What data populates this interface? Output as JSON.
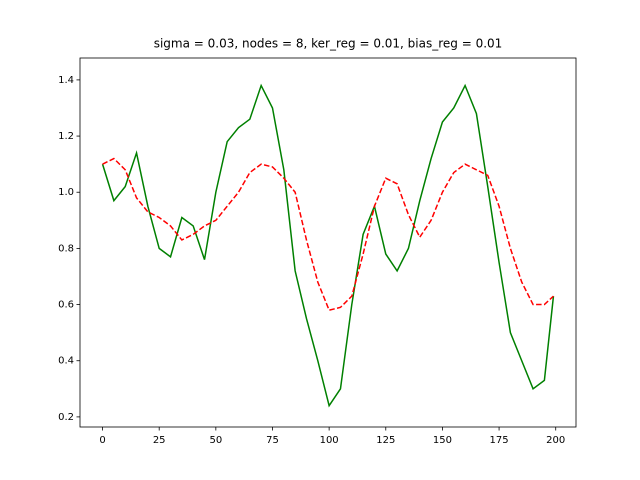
{
  "chart_data": {
    "type": "line",
    "title": "sigma = 0.03, nodes = 8, ker_reg = 0.01, bias_reg = 0.01",
    "x": [
      0,
      5,
      10,
      15,
      20,
      25,
      30,
      35,
      40,
      45,
      50,
      55,
      60,
      65,
      70,
      75,
      80,
      85,
      90,
      95,
      100,
      105,
      110,
      115,
      120,
      125,
      130,
      135,
      140,
      145,
      150,
      155,
      160,
      165,
      170,
      175,
      180,
      185,
      190,
      195,
      199
    ],
    "series": [
      {
        "color": "#008000",
        "linestyle": "solid",
        "values": [
          1.1,
          0.97,
          1.02,
          1.14,
          0.95,
          0.8,
          0.77,
          0.91,
          0.88,
          0.76,
          1.0,
          1.18,
          1.23,
          1.26,
          1.38,
          1.3,
          1.08,
          0.72,
          0.55,
          0.4,
          0.24,
          0.3,
          0.6,
          0.85,
          0.95,
          0.78,
          0.72,
          0.8,
          0.97,
          1.12,
          1.25,
          1.3,
          1.38,
          1.28,
          1.02,
          0.75,
          0.5,
          0.4,
          0.3,
          0.33,
          0.63
        ]
      },
      {
        "color": "#ff0000",
        "linestyle": "dashed",
        "values": [
          1.1,
          1.12,
          1.08,
          0.98,
          0.93,
          0.91,
          0.88,
          0.83,
          0.85,
          0.88,
          0.9,
          0.95,
          1.0,
          1.07,
          1.1,
          1.09,
          1.05,
          1.0,
          0.83,
          0.68,
          0.58,
          0.59,
          0.63,
          0.78,
          0.95,
          1.05,
          1.03,
          0.92,
          0.84,
          0.9,
          1.0,
          1.07,
          1.1,
          1.08,
          1.06,
          0.95,
          0.8,
          0.68,
          0.6,
          0.6,
          0.63
        ]
      }
    ],
    "xlim": [
      -9.95,
      208.95
    ],
    "xticks": [
      0,
      25,
      50,
      75,
      100,
      125,
      150,
      175,
      200
    ],
    "ylim": [
      0.164,
      1.478
    ],
    "yticks": [
      0.2,
      0.4,
      0.6,
      0.8,
      {
        "value": 1,
        "label": "1.0"
      },
      1.2,
      1.4
    ]
  }
}
